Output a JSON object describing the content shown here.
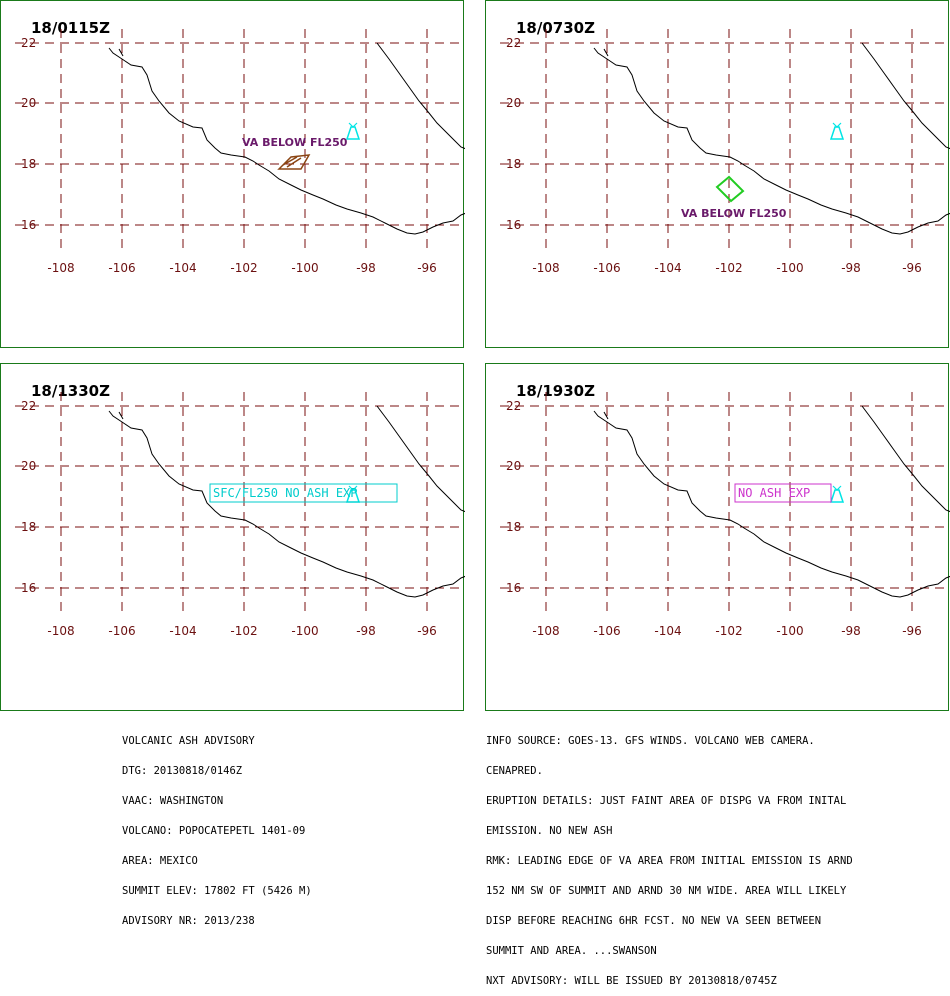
{
  "panels": [
    {
      "time": "18/0115Z",
      "va_label": "VA BELOW FL250",
      "va_label_color": "#6a1a6a",
      "polygon_color": "#8b4513"
    },
    {
      "time": "18/0730Z",
      "va_label": "VA BELOW FL250",
      "va_label_color": "#6a1a6a",
      "polygon_color": "#22cc22"
    },
    {
      "time": "18/1330Z",
      "box_label": "SFC/FL250 NO ASH EXP",
      "box_color": "#00cccc"
    },
    {
      "time": "18/1930Z",
      "box_label": "NO ASH EXP",
      "box_color": "#cc33cc"
    }
  ],
  "axes": {
    "lat_labels": [
      "22",
      "20",
      "18",
      "16"
    ],
    "lon_labels": [
      "-108",
      "-106",
      "-104",
      "-102",
      "-100",
      "-98",
      "-96"
    ],
    "grid_color": "#7a0f0f",
    "volcano_color": "#00e5e5"
  },
  "advisory_left": [
    "VOLCANIC ASH ADVISORY",
    "DTG: 20130818/0146Z",
    "VAAC: WASHINGTON",
    "VOLCANO: POPOCATEPETL 1401-09",
    "AREA: MEXICO",
    "SUMMIT ELEV: 17802 FT (5426 M)",
    "ADVISORY NR: 2013/238"
  ],
  "advisory_right": [
    "INFO SOURCE: GOES-13. GFS WINDS. VOLCANO WEB CAMERA.",
    "CENAPRED.",
    "ERUPTION DETAILS: JUST FAINT AREA OF DISPG VA FROM INITAL",
    "EMISSION. NO NEW ASH",
    "RMK: LEADING EDGE OF VA AREA FROM INITIAL EMISSION IS ARND",
    "152 NM SW OF SUMMIT AND ARND 30 NM WIDE. AREA WILL LIKELY",
    "DISP BEFORE REACHING 6HR FCST. NO NEW VA SEEN BETWEEN",
    "SUMMIT AND AREA. ...SWANSON",
    "NXT ADVISORY: WILL BE ISSUED BY 20130818/0745Z"
  ]
}
